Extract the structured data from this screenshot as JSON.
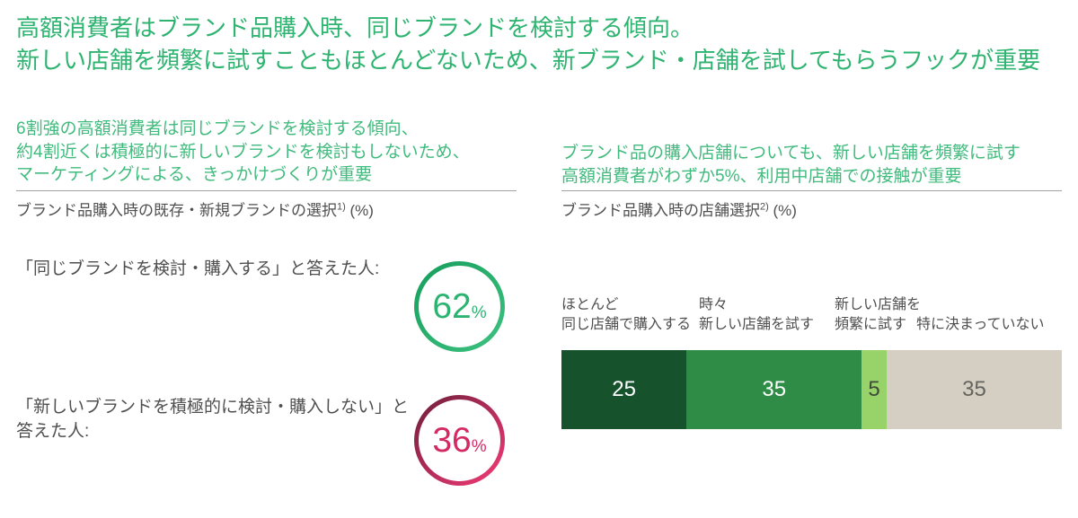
{
  "title": {
    "line1": "高額消費者はブランド品購入時、同じブランドを検討する傾向。",
    "line2": "新しい店舗を頻繁に試すこともほとんどないため、新ブランド・店舗を試してもらうフックが重要"
  },
  "colors": {
    "title-green": "#2eb370",
    "lead-green": "#41bb7d",
    "text-dark": "#4f4f4f",
    "divider-gray": "#a3a3a3",
    "ring-green-a": "#179e5c",
    "ring-green-b": "#3ec180",
    "green-text": "#2bb371",
    "ring-pink-a": "#701f3c",
    "ring-pink-b": "#f23a76",
    "pink-text": "#d42a64"
  },
  "left_panel": {
    "lead_lines": [
      "6割強の高額消費者は同じブランドを検討する傾向、",
      "約4割近くは積極的に新しいブランドを検討もしないため、",
      "マーケティングによる、きっかけづくりが重要"
    ],
    "chart_label": {
      "main": "ブランド品購入時の既存・新規ブランドの選択",
      "sup": "1)",
      "unit": " (%)"
    },
    "statements": [
      {
        "line1": "「同じブランドを検討・購入する」と答えた人:",
        "line2": ""
      },
      {
        "line1": "「新しいブランドを積極的に検討・購入しない」と",
        "line2": "答えた人:"
      }
    ]
  },
  "right_panel": {
    "lead_lines": [
      "ブランド品の購入店舗についても、新しい店舗を頻繁に試す",
      "高額消費者がわずか5%、利用中店舗での接触が重要"
    ],
    "chart_label": {
      "main": "ブランド品購入時の店舗選択",
      "sup": "2)",
      "unit": " (%)"
    }
  },
  "chart_data": [
    {
      "type": "pie",
      "subtype": "kpi-ring-numbers",
      "title": "ブランド品購入時の既存・新規ブランドの選択1) (%)",
      "items": [
        {
          "label": "「同じブランドを検討・購入する」と答えた人",
          "value": 62,
          "unit": "%",
          "ring": "green"
        },
        {
          "label": "「新しいブランドを積極的に検討・購入しない」と答えた人",
          "value": 36,
          "unit": "%",
          "ring": "crimson"
        }
      ]
    },
    {
      "type": "bar",
      "subtype": "horizontal-stacked",
      "title": "ブランド品購入時の店舗選択2) (%)",
      "total": 100,
      "segments": [
        {
          "label_line1": "ほとんど",
          "label_line2": "同じ店舗で購入する",
          "value": 25,
          "color": "#16522c",
          "text_color": "#ffffff"
        },
        {
          "label_line1": "時々",
          "label_line2": "新しい店舗を試す",
          "value": 35,
          "color": "#2e8c47",
          "text_color": "#ffffff"
        },
        {
          "label_line1": "新しい店舗を",
          "label_line2": "頻繁に試す",
          "value": 5,
          "color": "#97d369",
          "text_color": "#3f4a3a"
        },
        {
          "label_line1": "",
          "label_line2": "特に決まっていない",
          "value": 35,
          "color": "#d5cfc3",
          "text_color": "#64645f"
        }
      ]
    }
  ]
}
